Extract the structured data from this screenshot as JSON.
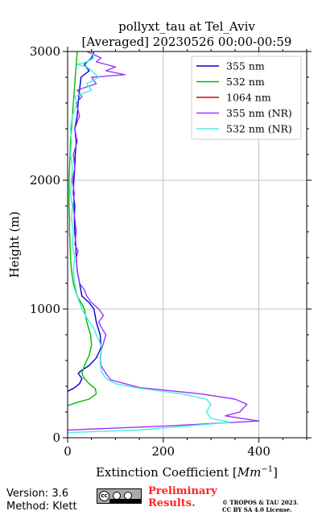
{
  "chart_data": {
    "type": "line",
    "title_line1": "pollyxt_tau at Tel_Aviv",
    "title_line2": "[Averaged] 20230526 00:00-00:59",
    "xlabel_prefix": "Extinction Coefficient [",
    "xlabel_unit": "Mm",
    "xlabel_exp": "−1",
    "xlabel_suffix": "]",
    "ylabel": "Height (m)",
    "xlim": [
      0,
      500
    ],
    "ylim": [
      0,
      3000
    ],
    "xticks": [
      0,
      200,
      400
    ],
    "yticks": [
      0,
      1000,
      2000,
      3000
    ],
    "grid": true,
    "legend_position": "top-right",
    "series": [
      {
        "name": "355 nm",
        "color": "#0000cc",
        "points": [
          [
            0,
            360
          ],
          [
            15,
            390
          ],
          [
            25,
            420
          ],
          [
            30,
            460
          ],
          [
            22,
            500
          ],
          [
            28,
            520
          ],
          [
            45,
            560
          ],
          [
            60,
            620
          ],
          [
            70,
            700
          ],
          [
            68,
            800
          ],
          [
            60,
            900
          ],
          [
            55,
            1000
          ],
          [
            45,
            1050
          ],
          [
            30,
            1100
          ],
          [
            25,
            1200
          ],
          [
            20,
            1300
          ],
          [
            18,
            1400
          ],
          [
            17,
            1500
          ],
          [
            15,
            1600
          ],
          [
            14,
            1700
          ],
          [
            15,
            1800
          ],
          [
            12,
            1900
          ],
          [
            13,
            2000
          ],
          [
            15,
            2100
          ],
          [
            16,
            2200
          ],
          [
            18,
            2300
          ],
          [
            15,
            2400
          ],
          [
            20,
            2500
          ],
          [
            22,
            2600
          ],
          [
            25,
            2700
          ],
          [
            28,
            2800
          ],
          [
            45,
            2850
          ],
          [
            35,
            2900
          ],
          [
            50,
            2950
          ],
          [
            55,
            3000
          ]
        ]
      },
      {
        "name": "532 nm",
        "color": "#00bb00",
        "points": [
          [
            0,
            250
          ],
          [
            25,
            280
          ],
          [
            45,
            300
          ],
          [
            60,
            340
          ],
          [
            58,
            380
          ],
          [
            45,
            420
          ],
          [
            35,
            460
          ],
          [
            30,
            500
          ],
          [
            35,
            560
          ],
          [
            45,
            640
          ],
          [
            50,
            720
          ],
          [
            48,
            800
          ],
          [
            40,
            900
          ],
          [
            35,
            1000
          ],
          [
            28,
            1050
          ],
          [
            20,
            1100
          ],
          [
            12,
            1200
          ],
          [
            8,
            1300
          ],
          [
            6,
            1400
          ],
          [
            5,
            1500
          ],
          [
            4,
            1600
          ],
          [
            4,
            1700
          ],
          [
            3,
            1800
          ],
          [
            3,
            1900
          ],
          [
            3,
            2000
          ],
          [
            4,
            2100
          ],
          [
            5,
            2200
          ],
          [
            6,
            2300
          ],
          [
            8,
            2400
          ],
          [
            10,
            2500
          ],
          [
            12,
            2600
          ],
          [
            14,
            2700
          ],
          [
            16,
            2800
          ],
          [
            18,
            2900
          ],
          [
            20,
            3000
          ]
        ]
      },
      {
        "name": "1064 nm",
        "color": "#dd0000",
        "points": []
      },
      {
        "name": "355 nm (NR)",
        "color": "#9933ff",
        "points": [
          [
            0,
            60
          ],
          [
            200,
            90
          ],
          [
            400,
            130
          ],
          [
            330,
            170
          ],
          [
            360,
            200
          ],
          [
            375,
            260
          ],
          [
            350,
            300
          ],
          [
            280,
            340
          ],
          [
            150,
            390
          ],
          [
            120,
            420
          ],
          [
            90,
            450
          ],
          [
            80,
            500
          ],
          [
            70,
            560
          ],
          [
            68,
            620
          ],
          [
            72,
            700
          ],
          [
            80,
            800
          ],
          [
            70,
            860
          ],
          [
            65,
            900
          ],
          [
            75,
            950
          ],
          [
            65,
            1000
          ],
          [
            50,
            1050
          ],
          [
            40,
            1100
          ],
          [
            35,
            1150
          ],
          [
            25,
            1200
          ],
          [
            20,
            1300
          ],
          [
            18,
            1400
          ],
          [
            22,
            1450
          ],
          [
            15,
            1500
          ],
          [
            18,
            1600
          ],
          [
            15,
            1700
          ],
          [
            12,
            1800
          ],
          [
            14,
            1900
          ],
          [
            10,
            2000
          ],
          [
            15,
            2100
          ],
          [
            12,
            2200
          ],
          [
            20,
            2300
          ],
          [
            15,
            2400
          ],
          [
            25,
            2500
          ],
          [
            18,
            2600
          ],
          [
            30,
            2650
          ],
          [
            20,
            2700
          ],
          [
            60,
            2750
          ],
          [
            50,
            2800
          ],
          [
            120,
            2820
          ],
          [
            80,
            2850
          ],
          [
            100,
            2880
          ],
          [
            60,
            2920
          ],
          [
            70,
            2950
          ],
          [
            40,
            3000
          ]
        ]
      },
      {
        "name": "532 nm (NR)",
        "color": "#44eedd",
        "points": [
          [
            0,
            40
          ],
          [
            150,
            60
          ],
          [
            340,
            120
          ],
          [
            300,
            150
          ],
          [
            290,
            200
          ],
          [
            300,
            260
          ],
          [
            290,
            300
          ],
          [
            240,
            340
          ],
          [
            140,
            390
          ],
          [
            100,
            420
          ],
          [
            80,
            460
          ],
          [
            70,
            520
          ],
          [
            68,
            600
          ],
          [
            72,
            700
          ],
          [
            60,
            800
          ],
          [
            55,
            850
          ],
          [
            45,
            900
          ],
          [
            30,
            1000
          ],
          [
            20,
            1100
          ],
          [
            15,
            1200
          ],
          [
            12,
            1300
          ],
          [
            15,
            1400
          ],
          [
            10,
            1500
          ],
          [
            12,
            1600
          ],
          [
            8,
            1700
          ],
          [
            10,
            1800
          ],
          [
            6,
            1900
          ],
          [
            8,
            2000
          ],
          [
            10,
            2100
          ],
          [
            6,
            2200
          ],
          [
            8,
            2300
          ],
          [
            6,
            2400
          ],
          [
            10,
            2500
          ],
          [
            20,
            2600
          ],
          [
            15,
            2650
          ],
          [
            50,
            2700
          ],
          [
            40,
            2750
          ],
          [
            65,
            2800
          ],
          [
            50,
            2850
          ],
          [
            40,
            2880
          ],
          [
            20,
            2900
          ],
          [
            40,
            2920
          ],
          [
            55,
            2950
          ],
          [
            50,
            3000
          ]
        ]
      }
    ]
  },
  "footer": {
    "version_line": "Version: 3.6",
    "method_line": "Method: Klett",
    "cc_text": "cc",
    "preliminary_line1": "Preliminary",
    "preliminary_line2": "Results.",
    "copyright_line1": "© TROPOS & TAU 2023.",
    "copyright_line2": "CC BY SA 4.0 License."
  }
}
